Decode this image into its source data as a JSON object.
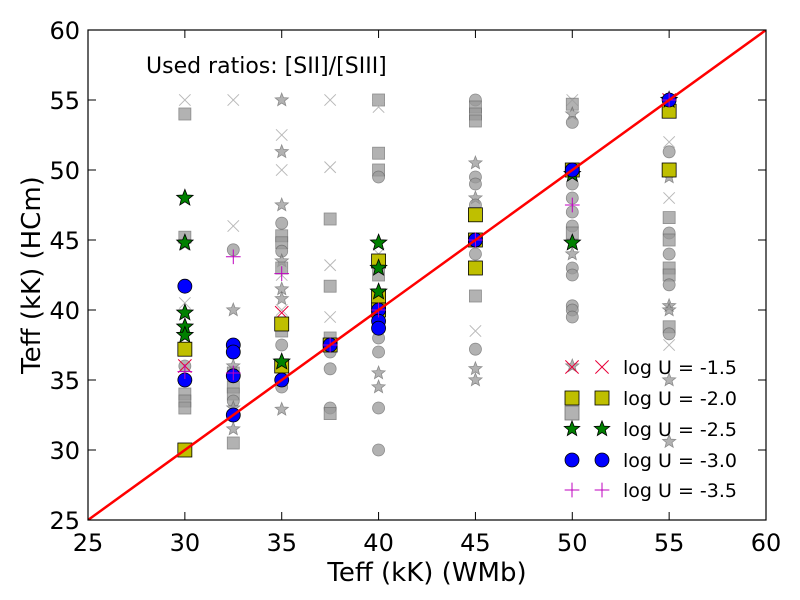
{
  "chart_data": {
    "type": "scatter",
    "title": "",
    "annotation": "Used ratios: [SII]/[SIII]",
    "xlabel": "Teff (kK) (WMb)",
    "ylabel": "Teff (kK) (HCm)",
    "xlim": [
      25,
      60
    ],
    "ylim": [
      25,
      60
    ],
    "xticks": [
      25,
      30,
      35,
      40,
      45,
      50,
      55,
      60
    ],
    "yticks": [
      25,
      30,
      35,
      40,
      45,
      50,
      55,
      60
    ],
    "grid": false,
    "legend_position": "lower-right",
    "identity_line": {
      "x": [
        25,
        60
      ],
      "y": [
        25,
        60
      ],
      "color": "#ff0000"
    },
    "background_series": {
      "name": "all grid models (gray)",
      "color": "#999999",
      "points": [
        {
          "x": 30,
          "y": 55,
          "m": "x"
        },
        {
          "x": 30,
          "y": 54,
          "m": "s"
        },
        {
          "x": 30,
          "y": 45.2,
          "m": "s"
        },
        {
          "x": 30,
          "y": 44.7,
          "m": "*"
        },
        {
          "x": 30,
          "y": 40.5,
          "m": "x"
        },
        {
          "x": 30,
          "y": 36,
          "m": "o"
        },
        {
          "x": 30,
          "y": 35,
          "m": "o"
        },
        {
          "x": 30,
          "y": 34,
          "m": "s"
        },
        {
          "x": 30,
          "y": 33.5,
          "m": "s"
        },
        {
          "x": 30,
          "y": 33,
          "m": "s"
        },
        {
          "x": 32.5,
          "y": 55,
          "m": "x"
        },
        {
          "x": 32.5,
          "y": 46,
          "m": "x"
        },
        {
          "x": 32.5,
          "y": 44.3,
          "m": "o"
        },
        {
          "x": 32.5,
          "y": 40,
          "m": "*"
        },
        {
          "x": 32.5,
          "y": 37.5,
          "m": "o"
        },
        {
          "x": 32.5,
          "y": 36,
          "m": "*"
        },
        {
          "x": 32.5,
          "y": 35.5,
          "m": "s"
        },
        {
          "x": 32.5,
          "y": 34.5,
          "m": "s"
        },
        {
          "x": 32.5,
          "y": 34,
          "m": "s"
        },
        {
          "x": 32.5,
          "y": 33.5,
          "m": "o"
        },
        {
          "x": 32.5,
          "y": 33,
          "m": "*"
        },
        {
          "x": 32.5,
          "y": 31.5,
          "m": "*"
        },
        {
          "x": 32.5,
          "y": 30.5,
          "m": "s"
        },
        {
          "x": 35,
          "y": 55,
          "m": "*"
        },
        {
          "x": 35,
          "y": 52.5,
          "m": "x"
        },
        {
          "x": 35,
          "y": 51.3,
          "m": "*"
        },
        {
          "x": 35,
          "y": 50,
          "m": "x"
        },
        {
          "x": 35,
          "y": 47.5,
          "m": "*"
        },
        {
          "x": 35,
          "y": 46.2,
          "m": "o"
        },
        {
          "x": 35,
          "y": 45.3,
          "m": "s"
        },
        {
          "x": 35,
          "y": 44.8,
          "m": "s"
        },
        {
          "x": 35,
          "y": 44.2,
          "m": "o"
        },
        {
          "x": 35,
          "y": 43.5,
          "m": "*"
        },
        {
          "x": 35,
          "y": 43,
          "m": "s"
        },
        {
          "x": 35,
          "y": 42.5,
          "m": "x"
        },
        {
          "x": 35,
          "y": 41.5,
          "m": "*"
        },
        {
          "x": 35,
          "y": 40.8,
          "m": "*"
        },
        {
          "x": 35,
          "y": 40,
          "m": "x"
        },
        {
          "x": 35,
          "y": 38.5,
          "m": "s"
        },
        {
          "x": 35,
          "y": 37.5,
          "m": "o"
        },
        {
          "x": 35,
          "y": 36,
          "m": "o"
        },
        {
          "x": 35,
          "y": 34.5,
          "m": "o"
        },
        {
          "x": 35,
          "y": 32.9,
          "m": "*"
        },
        {
          "x": 37.5,
          "y": 55,
          "m": "x"
        },
        {
          "x": 37.5,
          "y": 50.2,
          "m": "x"
        },
        {
          "x": 37.5,
          "y": 46.5,
          "m": "s"
        },
        {
          "x": 37.5,
          "y": 43.2,
          "m": "x"
        },
        {
          "x": 37.5,
          "y": 41.7,
          "m": "s"
        },
        {
          "x": 37.5,
          "y": 39.5,
          "m": "x"
        },
        {
          "x": 37.5,
          "y": 38,
          "m": "s"
        },
        {
          "x": 37.5,
          "y": 37,
          "m": "o"
        },
        {
          "x": 37.5,
          "y": 35.8,
          "m": "o"
        },
        {
          "x": 37.5,
          "y": 33,
          "m": "o"
        },
        {
          "x": 37.5,
          "y": 32.6,
          "m": "s"
        },
        {
          "x": 40,
          "y": 55,
          "m": "s"
        },
        {
          "x": 40,
          "y": 54.5,
          "m": "x"
        },
        {
          "x": 40,
          "y": 51.2,
          "m": "s"
        },
        {
          "x": 40,
          "y": 50,
          "m": "s"
        },
        {
          "x": 40,
          "y": 49.5,
          "m": "o"
        },
        {
          "x": 40,
          "y": 44,
          "m": "x"
        },
        {
          "x": 40,
          "y": 42.5,
          "m": "s"
        },
        {
          "x": 40,
          "y": 41,
          "m": "s"
        },
        {
          "x": 40,
          "y": 38,
          "m": "o"
        },
        {
          "x": 40,
          "y": 37,
          "m": "o"
        },
        {
          "x": 40,
          "y": 35.5,
          "m": "*"
        },
        {
          "x": 40,
          "y": 34.5,
          "m": "*"
        },
        {
          "x": 40,
          "y": 33,
          "m": "o"
        },
        {
          "x": 40,
          "y": 30,
          "m": "o"
        },
        {
          "x": 45,
          "y": 55,
          "m": "o"
        },
        {
          "x": 45,
          "y": 54.5,
          "m": "s"
        },
        {
          "x": 45,
          "y": 54,
          "m": "s"
        },
        {
          "x": 45,
          "y": 53.5,
          "m": "s"
        },
        {
          "x": 45,
          "y": 50.5,
          "m": "*"
        },
        {
          "x": 45,
          "y": 49.5,
          "m": "o"
        },
        {
          "x": 45,
          "y": 49,
          "m": "o"
        },
        {
          "x": 45,
          "y": 48,
          "m": "*"
        },
        {
          "x": 45,
          "y": 47.5,
          "m": "o"
        },
        {
          "x": 45,
          "y": 44,
          "m": "o"
        },
        {
          "x": 45,
          "y": 41,
          "m": "s"
        },
        {
          "x": 45,
          "y": 38.5,
          "m": "x"
        },
        {
          "x": 45,
          "y": 37.2,
          "m": "o"
        },
        {
          "x": 45,
          "y": 35.8,
          "m": "*"
        },
        {
          "x": 45,
          "y": 35,
          "m": "*"
        },
        {
          "x": 50,
          "y": 55,
          "m": "x"
        },
        {
          "x": 50,
          "y": 54.7,
          "m": "s"
        },
        {
          "x": 50,
          "y": 54,
          "m": "*"
        },
        {
          "x": 50,
          "y": 53.4,
          "m": "o"
        },
        {
          "x": 50,
          "y": 49,
          "m": "o"
        },
        {
          "x": 50,
          "y": 48,
          "m": "o"
        },
        {
          "x": 50,
          "y": 47,
          "m": "o"
        },
        {
          "x": 50,
          "y": 46,
          "m": "o"
        },
        {
          "x": 50,
          "y": 45.5,
          "m": "s"
        },
        {
          "x": 50,
          "y": 44,
          "m": "*"
        },
        {
          "x": 50,
          "y": 43,
          "m": "o"
        },
        {
          "x": 50,
          "y": 42.5,
          "m": "o"
        },
        {
          "x": 50,
          "y": 40.3,
          "m": "o"
        },
        {
          "x": 50,
          "y": 40,
          "m": "o"
        },
        {
          "x": 50,
          "y": 39.5,
          "m": "o"
        },
        {
          "x": 50,
          "y": 36,
          "m": "*"
        },
        {
          "x": 55,
          "y": 52,
          "m": "x"
        },
        {
          "x": 55,
          "y": 51.3,
          "m": "o"
        },
        {
          "x": 55,
          "y": 49.5,
          "m": "*"
        },
        {
          "x": 55,
          "y": 48,
          "m": "x"
        },
        {
          "x": 55,
          "y": 46.6,
          "m": "s"
        },
        {
          "x": 55,
          "y": 45.5,
          "m": "o"
        },
        {
          "x": 55,
          "y": 45,
          "m": "s"
        },
        {
          "x": 55,
          "y": 44,
          "m": "o"
        },
        {
          "x": 55,
          "y": 43,
          "m": "s"
        },
        {
          "x": 55,
          "y": 42.5,
          "m": "s"
        },
        {
          "x": 55,
          "y": 41.8,
          "m": "o"
        },
        {
          "x": 55,
          "y": 40.3,
          "m": "*"
        },
        {
          "x": 55,
          "y": 40,
          "m": "*"
        },
        {
          "x": 55,
          "y": 38.8,
          "m": "s"
        },
        {
          "x": 55,
          "y": 38.3,
          "m": "o"
        },
        {
          "x": 55,
          "y": 37.5,
          "m": "x"
        },
        {
          "x": 55,
          "y": 35,
          "m": "*"
        },
        {
          "x": 55,
          "y": 30.6,
          "m": "*"
        }
      ]
    },
    "series": [
      {
        "name": "log U = -1.5",
        "marker": "x",
        "color": "#e8003a",
        "x": [
          30,
          35,
          37.5,
          40,
          45,
          50,
          55
        ],
        "y": [
          36,
          39.8,
          37.5,
          40,
          45,
          50,
          55
        ]
      },
      {
        "name": "log U = -2.0",
        "marker": "s",
        "color": "#bfbf00",
        "x": [
          30,
          30,
          35,
          35,
          37.5,
          40,
          40,
          40,
          45,
          45,
          45,
          50,
          55,
          55
        ],
        "y": [
          30,
          37.2,
          39,
          36,
          37.5,
          43.5,
          41,
          40,
          45,
          43,
          46.8,
          50,
          54.2,
          50
        ]
      },
      {
        "name": "log U = -2.5",
        "marker": "*",
        "color": "#008000",
        "x": [
          30,
          30,
          30,
          30,
          30,
          35,
          40,
          40,
          40,
          50,
          50,
          55
        ],
        "y": [
          48,
          44.8,
          39.8,
          38.8,
          38.2,
          36.3,
          44.8,
          43,
          41.3,
          49.7,
          44.8,
          55
        ]
      },
      {
        "name": "log U = -3.0",
        "marker": "o",
        "color": "#0000ff",
        "x": [
          30,
          30,
          32.5,
          32.5,
          32.5,
          32.5,
          35,
          37.5,
          40,
          40,
          40,
          45,
          50,
          55
        ],
        "y": [
          41.7,
          35,
          37.5,
          37,
          35.3,
          32.5,
          35,
          37.5,
          40,
          39.2,
          38.7,
          45,
          50,
          55
        ]
      },
      {
        "name": "log U = -3.5",
        "marker": "+",
        "color": "#bf00bf",
        "x": [
          30,
          32.5,
          32.5,
          35,
          37.5,
          40,
          45,
          50,
          55
        ],
        "y": [
          35.6,
          43.8,
          35.5,
          42.6,
          37.5,
          40,
          45,
          47.5,
          55
        ]
      }
    ],
    "legend": [
      {
        "label": "log U = -1.5",
        "marker": "x",
        "color": "#e8003a"
      },
      {
        "label": "log U = -2.0",
        "marker": "s",
        "color": "#bfbf00"
      },
      {
        "label": "",
        "marker": "s",
        "color": "#999999"
      },
      {
        "label": "log U = -2.5",
        "marker": "*",
        "color": "#008000"
      },
      {
        "label": "log U = -3.0",
        "marker": "o",
        "color": "#0000ff"
      },
      {
        "label": "log U = -3.5",
        "marker": "+",
        "color": "#bf00bf"
      }
    ]
  }
}
